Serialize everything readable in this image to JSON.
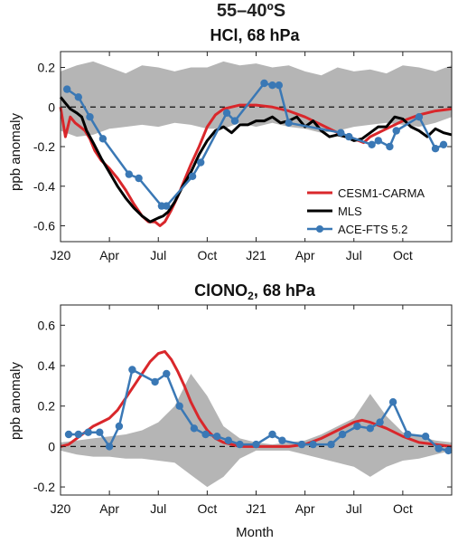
{
  "figure": {
    "suptitle": "55–40ºS",
    "xlabel": "Month"
  },
  "colors": {
    "model": "#d9272b",
    "mls": "#000000",
    "ace": "#3a78b5",
    "envelope": "#b5b5b5"
  },
  "x_ticks": [
    {
      "label": "J20",
      "month": 0
    },
    {
      "label": "Apr",
      "month": 3
    },
    {
      "label": "Jul",
      "month": 6
    },
    {
      "label": "Oct",
      "month": 9
    },
    {
      "label": "J21",
      "month": 12
    },
    {
      "label": "Apr",
      "month": 15
    },
    {
      "label": "Jul",
      "month": 18
    },
    {
      "label": "Oct",
      "month": 21
    }
  ],
  "chart_data": [
    {
      "type": "line",
      "title_main": "HCl, 68 hPa",
      "title_sub": "",
      "xlabel": "",
      "ylabel": "ppb anomaly",
      "xlim": [
        0,
        24
      ],
      "ylim": [
        -0.68,
        0.28
      ],
      "yticks": [
        -0.6,
        -0.4,
        -0.2,
        0,
        0.2
      ],
      "ytick_labels": [
        "-0.6",
        "-0.4",
        "-0.2",
        "0",
        "0.2"
      ],
      "legend": {
        "position": "bottom-right",
        "entries": [
          "CESM1-CARMA",
          "MLS",
          "ACE-FTS 5.2"
        ]
      },
      "envelope": {
        "x": [
          0,
          1,
          2,
          3,
          4,
          5,
          6,
          7,
          8,
          9,
          10,
          11,
          12,
          13,
          14,
          15,
          16,
          17,
          18,
          19,
          20,
          21,
          22,
          23,
          24
        ],
        "upper": [
          0.18,
          0.21,
          0.23,
          0.2,
          0.17,
          0.21,
          0.2,
          0.18,
          0.2,
          0.2,
          0.23,
          0.21,
          0.22,
          0.2,
          0.21,
          0.18,
          0.16,
          0.2,
          0.18,
          0.19,
          0.17,
          0.21,
          0.2,
          0.18,
          0.21
        ],
        "lower": [
          -0.12,
          -0.15,
          -0.14,
          -0.11,
          -0.1,
          -0.09,
          -0.1,
          -0.08,
          -0.09,
          -0.11,
          -0.11,
          -0.08,
          -0.1,
          -0.08,
          -0.1,
          -0.11,
          -0.13,
          -0.12,
          -0.1,
          -0.09,
          -0.08,
          -0.09,
          -0.1,
          -0.08,
          -0.05
        ]
      },
      "series": [
        {
          "name": "CESM1-CARMA",
          "style": "line",
          "x": [
            0,
            0.3,
            0.6,
            0.9,
            1.2,
            1.5,
            1.8,
            2.1,
            2.5,
            3,
            3.5,
            4,
            4.5,
            5,
            5.4,
            5.8,
            6.1,
            6.4,
            6.8,
            7.2,
            7.6,
            8,
            8.5,
            9,
            9.5,
            10,
            11,
            12,
            13,
            14,
            15,
            16,
            17,
            18,
            18.6,
            19,
            20,
            21,
            22,
            23,
            24
          ],
          "y": [
            0,
            -0.15,
            -0.05,
            -0.08,
            -0.1,
            -0.12,
            -0.16,
            -0.22,
            -0.27,
            -0.31,
            -0.36,
            -0.42,
            -0.49,
            -0.55,
            -0.58,
            -0.58,
            -0.6,
            -0.58,
            -0.52,
            -0.45,
            -0.37,
            -0.29,
            -0.2,
            -0.1,
            -0.04,
            -0.01,
            0.01,
            0.01,
            0,
            -0.02,
            -0.05,
            -0.09,
            -0.13,
            -0.16,
            -0.18,
            -0.15,
            -0.11,
            -0.07,
            -0.04,
            -0.02,
            -0.01
          ]
        },
        {
          "name": "MLS",
          "style": "line",
          "x": [
            0,
            0.3,
            0.6,
            1,
            1.3,
            1.6,
            2,
            2.5,
            3,
            3.5,
            4,
            4.5,
            5,
            5.5,
            6,
            6.3,
            6.6,
            7,
            7.5,
            8,
            8.5,
            9,
            9.5,
            10,
            10.5,
            11,
            11.5,
            12,
            12.5,
            13,
            13.5,
            14,
            14.5,
            15,
            15.5,
            16,
            16.5,
            17,
            17.5,
            18,
            18.5,
            19,
            19.5,
            20,
            20.5,
            21,
            21.5,
            22,
            22.5,
            23,
            23.5,
            24
          ],
          "y": [
            0.05,
            0.02,
            -0.01,
            -0.03,
            -0.05,
            -0.12,
            -0.18,
            -0.26,
            -0.33,
            -0.4,
            -0.46,
            -0.51,
            -0.55,
            -0.58,
            -0.56,
            -0.55,
            -0.53,
            -0.48,
            -0.4,
            -0.33,
            -0.24,
            -0.17,
            -0.12,
            -0.1,
            -0.13,
            -0.09,
            -0.09,
            -0.07,
            -0.07,
            -0.05,
            -0.08,
            -0.07,
            -0.05,
            -0.1,
            -0.07,
            -0.12,
            -0.15,
            -0.14,
            -0.15,
            -0.17,
            -0.16,
            -0.13,
            -0.1,
            -0.1,
            -0.05,
            -0.06,
            -0.1,
            -0.12,
            -0.15,
            -0.11,
            -0.13,
            -0.14
          ]
        },
        {
          "name": "ACE-FTS 5.2",
          "style": "line-marker",
          "x": [
            0.4,
            1.1,
            1.8,
            2.6,
            4.2,
            4.8,
            6.2,
            6.5,
            8.1,
            8.6,
            10.2,
            10.7,
            12.5,
            13,
            13.4,
            14,
            17.2,
            17.7,
            19.1,
            19.5,
            20.2,
            20.6,
            22,
            23,
            23.5
          ],
          "y": [
            0.09,
            0.05,
            -0.05,
            -0.16,
            -0.34,
            -0.36,
            -0.5,
            -0.5,
            -0.35,
            -0.28,
            -0.03,
            -0.07,
            0.12,
            0.11,
            0.11,
            -0.08,
            -0.13,
            -0.15,
            -0.19,
            -0.17,
            -0.2,
            -0.12,
            -0.05,
            -0.21,
            -0.19
          ]
        }
      ]
    },
    {
      "type": "line",
      "title_main": "ClONO",
      "title_sub": "2",
      "title_suffix": ", 68 hPa",
      "xlabel": "Month",
      "ylabel": "ppb anomaly",
      "xlim": [
        0,
        24
      ],
      "ylim": [
        -0.24,
        0.7
      ],
      "yticks": [
        -0.2,
        0,
        0.2,
        0.4,
        0.6
      ],
      "ytick_labels": [
        "-0.2",
        "0",
        "0.2",
        "0.4",
        "0.6"
      ],
      "envelope": {
        "x": [
          0,
          1,
          2,
          3,
          4,
          5,
          6,
          7,
          8,
          9,
          10,
          11,
          12,
          13,
          14,
          15,
          16,
          17,
          18,
          19,
          20,
          21,
          22,
          23,
          24
        ],
        "upper": [
          0.02,
          0.03,
          0.04,
          0.05,
          0.06,
          0.08,
          0.12,
          0.2,
          0.36,
          0.25,
          0.1,
          0.04,
          0.02,
          0.01,
          0.02,
          0.03,
          0.06,
          0.1,
          0.14,
          0.26,
          0.15,
          0.07,
          0.05,
          0.03,
          0.02
        ],
        "lower": [
          -0.02,
          -0.04,
          -0.05,
          -0.05,
          -0.06,
          -0.06,
          -0.07,
          -0.08,
          -0.14,
          -0.2,
          -0.15,
          -0.06,
          -0.02,
          -0.02,
          -0.02,
          -0.04,
          -0.06,
          -0.08,
          -0.1,
          -0.15,
          -0.1,
          -0.07,
          -0.06,
          -0.04,
          -0.02
        ]
      },
      "series": [
        {
          "name": "CESM1-CARMA",
          "style": "line",
          "x": [
            0,
            0.5,
            1,
            1.5,
            2,
            2.5,
            3,
            3.5,
            4,
            4.5,
            5,
            5.5,
            6,
            6.4,
            6.8,
            7.2,
            7.6,
            8,
            8.5,
            9,
            9.5,
            10,
            10.5,
            11,
            12,
            13,
            14,
            15,
            16,
            17,
            18,
            18.5,
            19,
            20,
            21,
            22,
            23,
            24
          ],
          "y": [
            0,
            0.01,
            0.04,
            0.07,
            0.1,
            0.12,
            0.14,
            0.18,
            0.24,
            0.3,
            0.36,
            0.42,
            0.46,
            0.47,
            0.43,
            0.37,
            0.3,
            0.22,
            0.14,
            0.08,
            0.04,
            0.02,
            0.01,
            0,
            0,
            0,
            0,
            0.01,
            0.04,
            0.08,
            0.12,
            0.13,
            0.12,
            0.09,
            0.05,
            0.02,
            0.01,
            0
          ]
        },
        {
          "name": "ACE-FTS 5.2",
          "style": "line-marker",
          "x": [
            0.5,
            1.1,
            1.7,
            2.4,
            3,
            3.6,
            4.4,
            5.8,
            6.5,
            7.3,
            8.2,
            8.9,
            9.6,
            10.3,
            11,
            12,
            13,
            13.6,
            14.8,
            15.5,
            16.6,
            17.3,
            18.2,
            19,
            19.6,
            20.4,
            21.3,
            22.4,
            23.2,
            23.8
          ],
          "y": [
            0.06,
            0.06,
            0.07,
            0.07,
            0.0,
            0.1,
            0.38,
            0.32,
            0.36,
            0.2,
            0.09,
            0.06,
            0.05,
            0.03,
            0.01,
            0.01,
            0.06,
            0.03,
            0.01,
            0.01,
            0.01,
            0.06,
            0.1,
            0.09,
            0.12,
            0.22,
            0.06,
            0.05,
            -0.01,
            -0.02
          ]
        }
      ]
    }
  ]
}
